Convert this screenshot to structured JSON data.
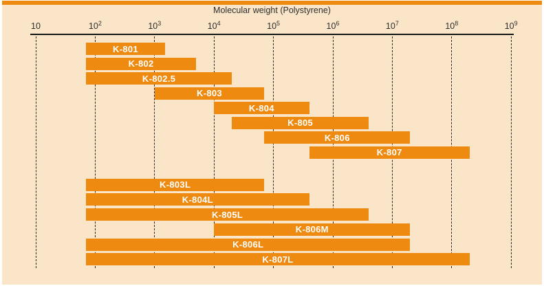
{
  "chart_data": {
    "type": "bar",
    "subtype": "horizontal-log-range",
    "title": "Molecular weight (Polystyrene)",
    "x_axis": {
      "scale": "log10",
      "xlim": [
        10,
        1000000000
      ],
      "grid": true,
      "ticks": [
        {
          "base": "10",
          "exp": ""
        },
        {
          "base": "10",
          "exp": "2"
        },
        {
          "base": "10",
          "exp": "3"
        },
        {
          "base": "10",
          "exp": "4"
        },
        {
          "base": "10",
          "exp": "5"
        },
        {
          "base": "10",
          "exp": "6"
        },
        {
          "base": "10",
          "exp": "7"
        },
        {
          "base": "10",
          "exp": "8"
        },
        {
          "base": "10",
          "exp": "9"
        }
      ]
    },
    "series": [
      {
        "name": "K-801",
        "min": 70,
        "max": 1500,
        "group": 1
      },
      {
        "name": "K-802",
        "min": 70,
        "max": 5000,
        "group": 1
      },
      {
        "name": "K-802.5",
        "min": 70,
        "max": 20000,
        "group": 1
      },
      {
        "name": "K-803",
        "min": 1000,
        "max": 70000,
        "group": 1
      },
      {
        "name": "K-804",
        "min": 10000,
        "max": 400000,
        "group": 1
      },
      {
        "name": "K-805",
        "min": 20000,
        "max": 4000000,
        "group": 1
      },
      {
        "name": "K-806",
        "min": 70000,
        "max": 20000000,
        "group": 1
      },
      {
        "name": "K-807",
        "min": 400000,
        "max": 200000000,
        "group": 1
      },
      {
        "name": "K-803L",
        "min": 70,
        "max": 70000,
        "group": 2
      },
      {
        "name": "K-804L",
        "min": 70,
        "max": 400000,
        "group": 2
      },
      {
        "name": "K-805L",
        "min": 70,
        "max": 4000000,
        "group": 2
      },
      {
        "name": "K-806M",
        "min": 10000,
        "max": 20000000,
        "group": 2
      },
      {
        "name": "K-806L",
        "min": 70,
        "max": 20000000,
        "group": 2
      },
      {
        "name": "K-807L",
        "min": 70,
        "max": 200000000,
        "group": 2
      }
    ],
    "colors": {
      "bar": "#ee8a10",
      "bar_label": "#ffffff",
      "panel_background": "#fae5c8",
      "top_strip": "#ee8a10",
      "axis": "#141414",
      "grid": "#2b2520",
      "text": "#2d2d2d"
    }
  }
}
